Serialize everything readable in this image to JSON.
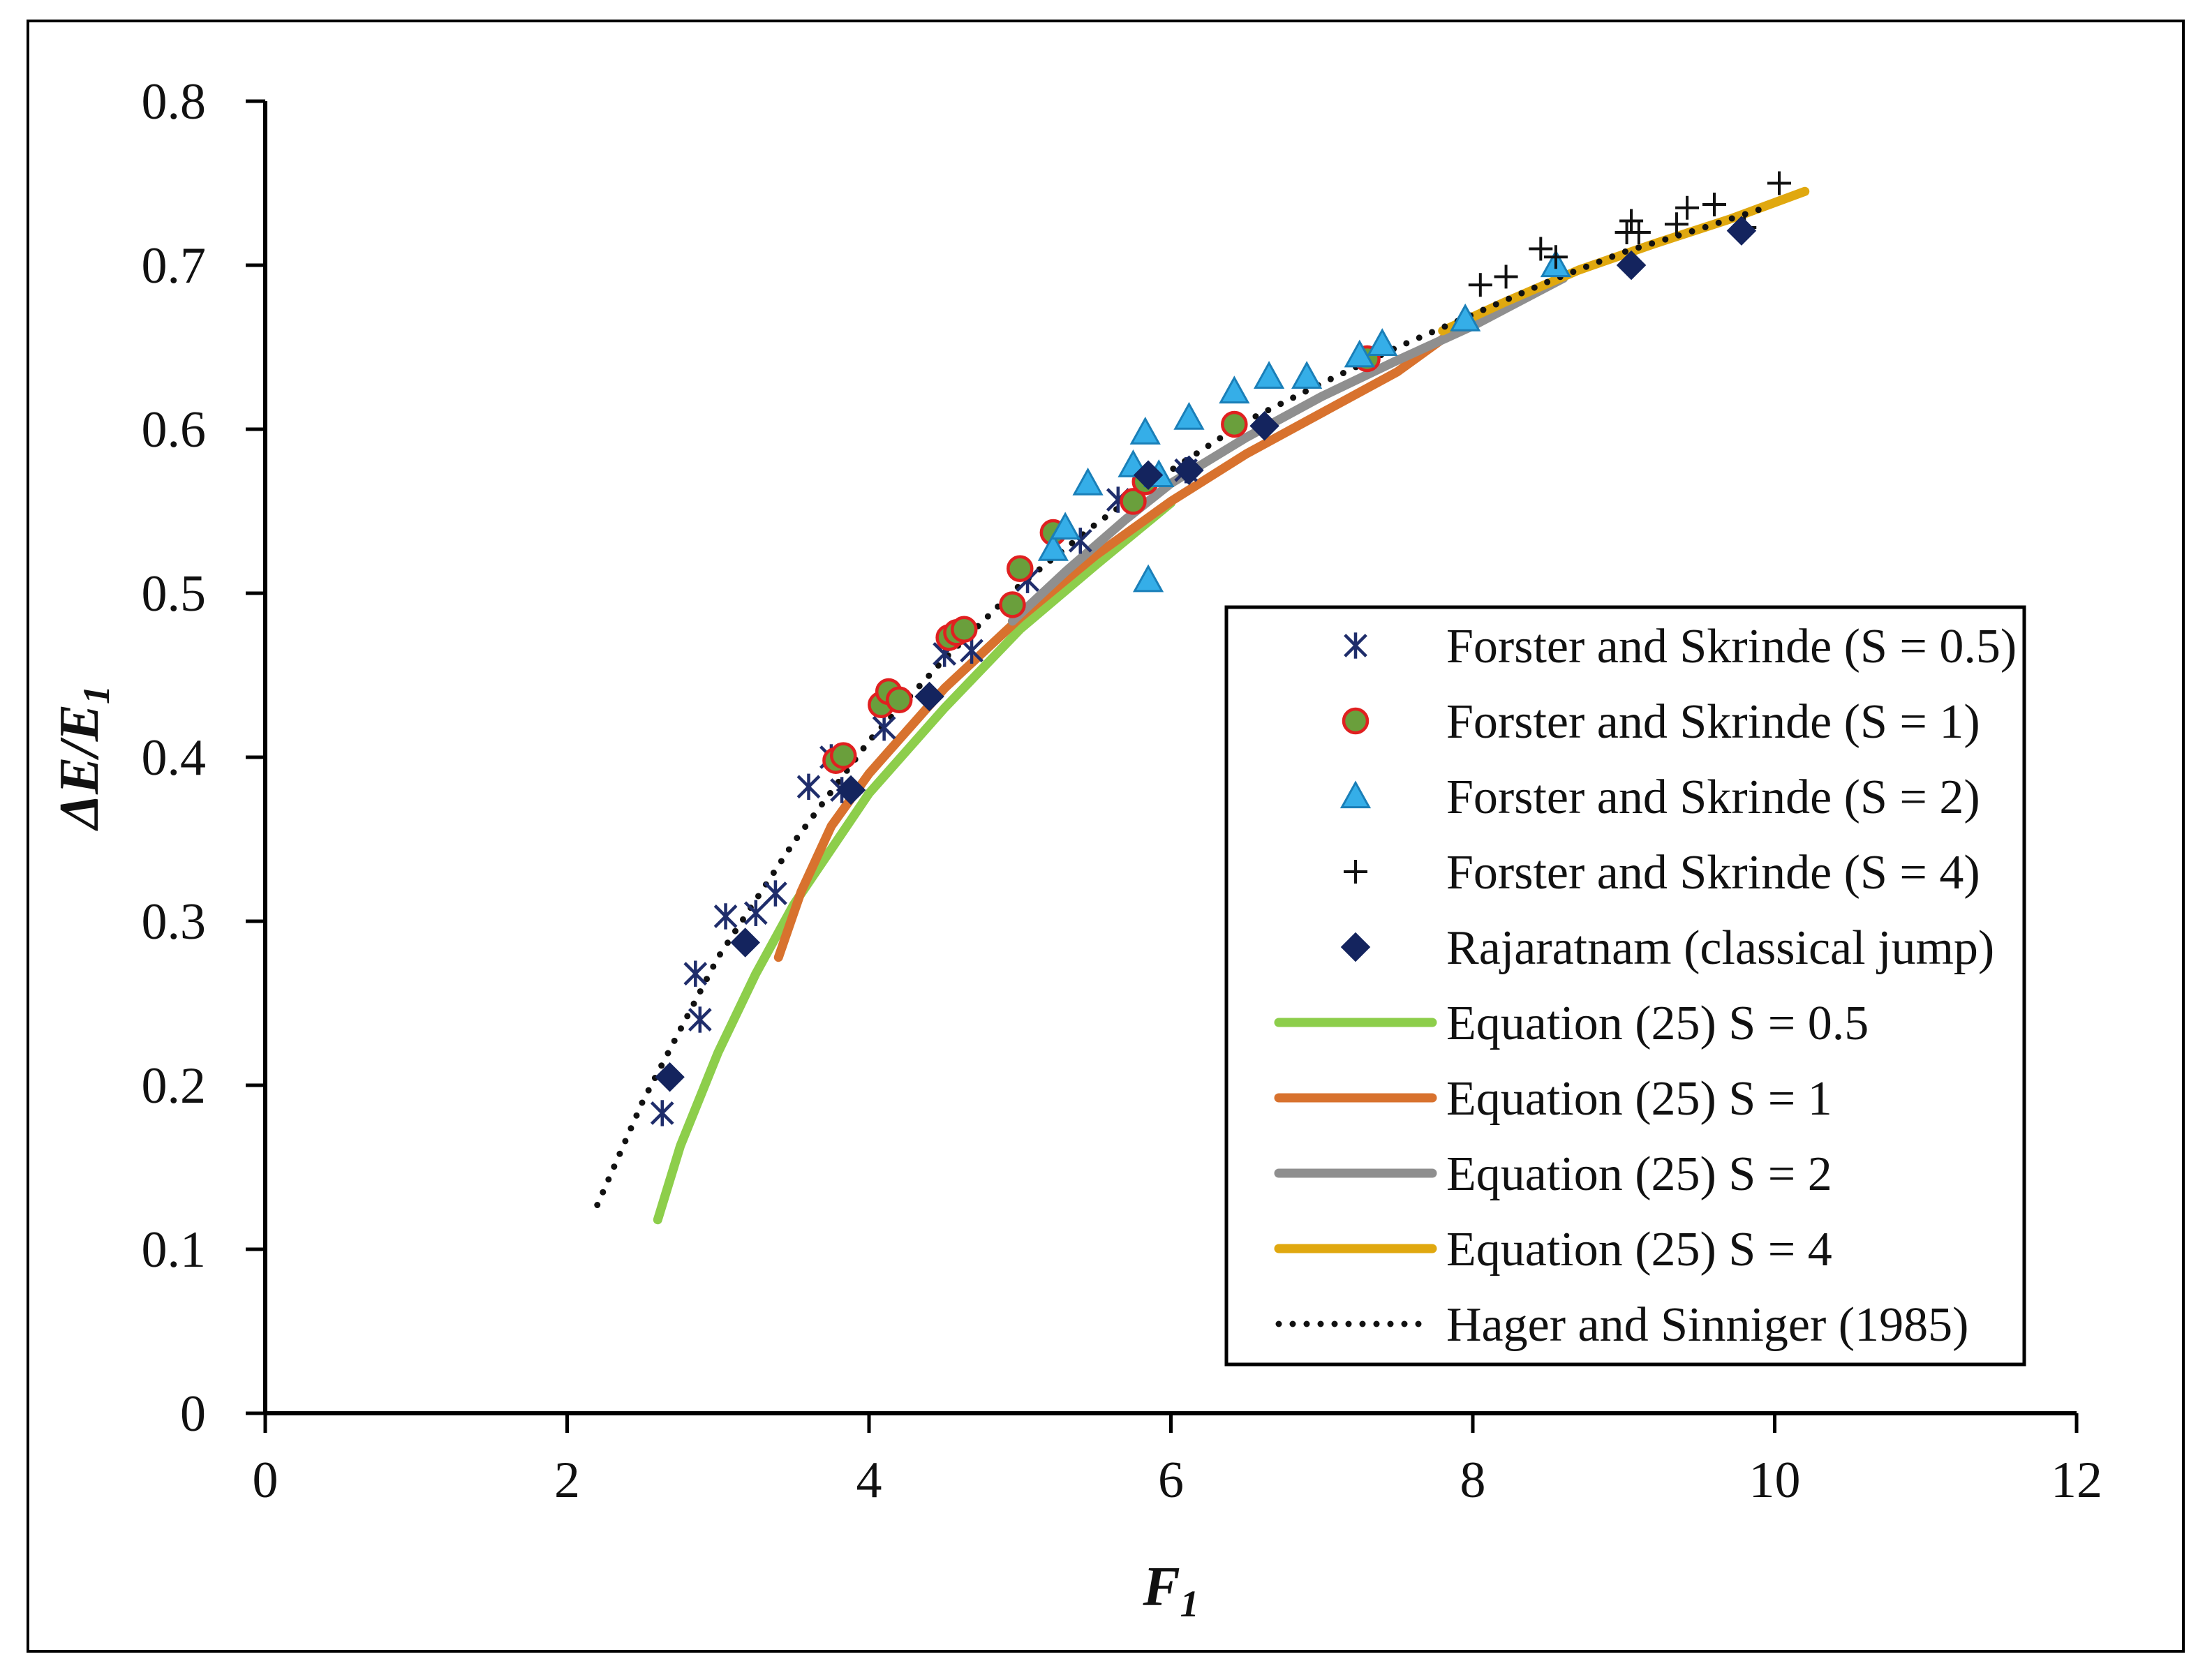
{
  "chart_data": {
    "type": "scatter",
    "title": "",
    "xlabel": "F",
    "xlabel_sub": "1",
    "ylabel": "ΔE/E",
    "ylabel_sub": "1",
    "xlim": [
      0,
      12
    ],
    "ylim": [
      0,
      0.8
    ],
    "x_ticks": [
      "0",
      "2",
      "4",
      "6",
      "8",
      "10",
      "12"
    ],
    "y_ticks": [
      "0",
      "0.1",
      "0.2",
      "0.3",
      "0.4",
      "0.5",
      "0.6",
      "0.7",
      "0.8"
    ],
    "grid": false,
    "legend_position": "bottom-right",
    "series": [
      {
        "name": "Forster and Skrinde (S = 0.5)",
        "kind": "marker",
        "marker": "asterisk",
        "color": "#1f2d6b",
        "points": [
          [
            2.63,
            0.183
          ],
          [
            2.85,
            0.268
          ],
          [
            2.88,
            0.24
          ],
          [
            3.05,
            0.303
          ],
          [
            3.25,
            0.305
          ],
          [
            3.38,
            0.317
          ],
          [
            3.6,
            0.382
          ],
          [
            3.75,
            0.4
          ],
          [
            3.82,
            0.38
          ],
          [
            4.1,
            0.418
          ],
          [
            4.5,
            0.463
          ],
          [
            4.68,
            0.465
          ],
          [
            5.05,
            0.508
          ],
          [
            5.4,
            0.532
          ],
          [
            5.65,
            0.557
          ],
          [
            6.1,
            0.575
          ]
        ]
      },
      {
        "name": "Forster and Skrinde (S = 1)",
        "kind": "marker",
        "marker": "circle",
        "color": "#6a9f3c",
        "stroke": "#e02020",
        "points": [
          [
            3.78,
            0.398
          ],
          [
            3.83,
            0.401
          ],
          [
            4.08,
            0.432
          ],
          [
            4.13,
            0.44
          ],
          [
            4.2,
            0.435
          ],
          [
            4.53,
            0.473
          ],
          [
            4.58,
            0.476
          ],
          [
            4.63,
            0.478
          ],
          [
            4.95,
            0.493
          ],
          [
            5.0,
            0.515
          ],
          [
            5.22,
            0.537
          ],
          [
            5.75,
            0.556
          ],
          [
            5.83,
            0.568
          ],
          [
            6.42,
            0.603
          ],
          [
            7.3,
            0.643
          ]
        ]
      },
      {
        "name": "Forster and Skrinde (S = 2)",
        "kind": "marker",
        "marker": "triangle",
        "color": "#35aee8",
        "stroke": "#1a7fb8",
        "points": [
          [
            5.22,
            0.527
          ],
          [
            5.3,
            0.54
          ],
          [
            5.45,
            0.567
          ],
          [
            5.75,
            0.578
          ],
          [
            5.83,
            0.598
          ],
          [
            5.85,
            0.508
          ],
          [
            5.92,
            0.572
          ],
          [
            6.12,
            0.607
          ],
          [
            6.42,
            0.623
          ],
          [
            6.65,
            0.632
          ],
          [
            6.9,
            0.632
          ],
          [
            7.25,
            0.645
          ],
          [
            7.4,
            0.652
          ],
          [
            7.95,
            0.667
          ],
          [
            8.55,
            0.7
          ]
        ]
      },
      {
        "name": "Forster and Skrinde (S = 4)",
        "kind": "marker",
        "marker": "plus",
        "color": "#111111",
        "points": [
          [
            8.05,
            0.688
          ],
          [
            8.22,
            0.693
          ],
          [
            8.45,
            0.71
          ],
          [
            8.55,
            0.705
          ],
          [
            9.02,
            0.72
          ],
          [
            9.05,
            0.727
          ],
          [
            9.1,
            0.72
          ],
          [
            9.35,
            0.725
          ],
          [
            9.42,
            0.735
          ],
          [
            9.6,
            0.737
          ],
          [
            9.8,
            0.723
          ],
          [
            10.03,
            0.75
          ]
        ]
      },
      {
        "name": "Rajaratnam (classical jump)",
        "kind": "marker",
        "marker": "diamond",
        "color": "#14245e",
        "points": [
          [
            2.68,
            0.205
          ],
          [
            3.18,
            0.287
          ],
          [
            3.88,
            0.38
          ],
          [
            4.4,
            0.437
          ],
          [
            5.85,
            0.572
          ],
          [
            6.12,
            0.575
          ],
          [
            6.62,
            0.602
          ],
          [
            9.05,
            0.7
          ],
          [
            9.78,
            0.721
          ]
        ]
      },
      {
        "name": "Equation (25) S = 0.5",
        "kind": "line",
        "style": "solid",
        "color": "#8dce4b",
        "points": [
          [
            2.6,
            0.118
          ],
          [
            2.75,
            0.163
          ],
          [
            3.0,
            0.22
          ],
          [
            3.25,
            0.268
          ],
          [
            3.5,
            0.31
          ],
          [
            4.0,
            0.378
          ],
          [
            4.5,
            0.43
          ],
          [
            5.0,
            0.478
          ],
          [
            5.5,
            0.517
          ],
          [
            6.0,
            0.555
          ]
        ]
      },
      {
        "name": "Equation (25) S = 1",
        "kind": "line",
        "style": "solid",
        "color": "#d8722e",
        "points": [
          [
            3.4,
            0.278
          ],
          [
            3.55,
            0.318
          ],
          [
            3.75,
            0.358
          ],
          [
            4.0,
            0.39
          ],
          [
            4.5,
            0.442
          ],
          [
            5.0,
            0.485
          ],
          [
            5.5,
            0.523
          ],
          [
            6.0,
            0.556
          ],
          [
            6.5,
            0.585
          ],
          [
            7.0,
            0.61
          ],
          [
            7.5,
            0.635
          ],
          [
            7.8,
            0.655
          ]
        ]
      },
      {
        "name": "Equation (25) S = 2",
        "kind": "line",
        "style": "solid",
        "color": "#8f8f8f",
        "points": [
          [
            4.95,
            0.483
          ],
          [
            5.3,
            0.513
          ],
          [
            5.7,
            0.545
          ],
          [
            6.0,
            0.567
          ],
          [
            6.5,
            0.595
          ],
          [
            7.0,
            0.62
          ],
          [
            7.5,
            0.642
          ],
          [
            8.0,
            0.663
          ],
          [
            8.6,
            0.692
          ]
        ]
      },
      {
        "name": "Equation (25) S = 4",
        "kind": "line",
        "style": "solid",
        "color": "#e0a80f",
        "points": [
          [
            7.8,
            0.66
          ],
          [
            8.2,
            0.677
          ],
          [
            8.7,
            0.697
          ],
          [
            9.2,
            0.713
          ],
          [
            9.7,
            0.728
          ],
          [
            10.2,
            0.745
          ]
        ]
      },
      {
        "name": "Hager and Sinniger (1985)",
        "kind": "line",
        "style": "dotted",
        "color": "#111111",
        "points": [
          [
            2.2,
            0.127
          ],
          [
            2.5,
            0.19
          ],
          [
            3.0,
            0.278
          ],
          [
            3.5,
            0.348
          ],
          [
            4.0,
            0.41
          ],
          [
            4.5,
            0.46
          ],
          [
            5.0,
            0.505
          ],
          [
            5.5,
            0.542
          ],
          [
            6.0,
            0.575
          ],
          [
            6.5,
            0.605
          ],
          [
            7.0,
            0.628
          ],
          [
            7.5,
            0.65
          ],
          [
            8.0,
            0.67
          ],
          [
            8.5,
            0.69
          ],
          [
            9.0,
            0.708
          ],
          [
            9.5,
            0.722
          ],
          [
            9.9,
            0.734
          ]
        ]
      }
    ]
  }
}
